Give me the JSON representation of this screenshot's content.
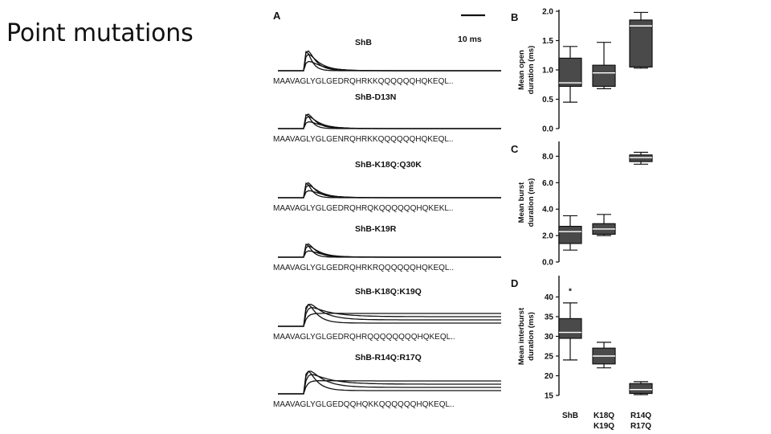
{
  "slide": {
    "title": "Point mutations"
  },
  "panel_a": {
    "label": "A",
    "scale_bar": "10 ms",
    "traces": [
      {
        "construct": "ShB",
        "sequence": "MAAVAGLYGLGEDRQHRKKQQQQQQHQKEQL.."
      },
      {
        "construct": "ShB-D13N",
        "sequence": "MAAVAGLYGLGENRQHRKKQQQQQQHQKEQL.."
      },
      {
        "construct": "ShB-K18Q:Q30K",
        "sequence": "MAAVAGLYGLGEDRQHRQKQQQQQQHQKEKL.."
      },
      {
        "construct": "ShB-K19R",
        "sequence": "MAAVAGLYGLGEDRQHRKRQQQQQQHQKEQL.."
      },
      {
        "construct": "ShB-K18Q:K19Q",
        "sequence": "MAAVAGLYGLGEDRQHRQQQQQQQQHQKEQL.."
      },
      {
        "construct": "ShB-R14Q:R17Q",
        "sequence": "MAAVAGLYGLGEDQQHQKKQQQQQQHQKEQL.."
      }
    ]
  },
  "chart_data": [
    {
      "type": "box",
      "panel": "B",
      "ylabel": "Mean open duration (ms)",
      "ylim": [
        0.0,
        2.0
      ],
      "yticks": [
        "0.0",
        "0.5",
        "1.0",
        "1.5",
        "2.0"
      ],
      "categories": [
        "ShB",
        "K18Q K19Q",
        "R14Q R17Q"
      ],
      "boxes": [
        {
          "whisker_low": 0.45,
          "q1": 0.72,
          "median": 0.78,
          "q3": 1.2,
          "whisker_high": 1.4
        },
        {
          "whisker_low": 0.68,
          "q1": 0.72,
          "median": 0.95,
          "q3": 1.08,
          "whisker_high": 1.47
        },
        {
          "whisker_low": 1.03,
          "q1": 1.05,
          "median": 1.75,
          "q3": 1.85,
          "whisker_high": 1.98
        }
      ]
    },
    {
      "type": "box",
      "panel": "C",
      "ylabel": "Mean burst duration (ms)",
      "ylim": [
        0.0,
        9.0
      ],
      "yticks": [
        "0.0",
        "2.0",
        "4.0",
        "6.0",
        "8.0"
      ],
      "categories": [
        "ShB",
        "K18Q K19Q",
        "R14Q R17Q"
      ],
      "boxes": [
        {
          "whisker_low": 0.9,
          "q1": 1.4,
          "median": 2.3,
          "q3": 2.7,
          "whisker_high": 3.5
        },
        {
          "whisker_low": 2.0,
          "q1": 2.1,
          "median": 2.5,
          "q3": 2.9,
          "whisker_high": 3.6
        },
        {
          "whisker_low": 7.4,
          "q1": 7.6,
          "median": 7.9,
          "q3": 8.1,
          "whisker_high": 8.3
        }
      ]
    },
    {
      "type": "box",
      "panel": "D",
      "ylabel": "Mean interburst duration (ms)",
      "ylim": [
        15,
        45
      ],
      "yticks": [
        "15",
        "20",
        "25",
        "30",
        "35",
        "40"
      ],
      "categories": [
        "ShB",
        "K18Q K19Q",
        "R14Q R17Q"
      ],
      "outlier_marks": [
        "*",
        "",
        ""
      ],
      "outlier_values": [
        42,
        null,
        null
      ],
      "boxes": [
        {
          "whisker_low": 24,
          "q1": 29.5,
          "median": 31,
          "q3": 34.5,
          "whisker_high": 38.5
        },
        {
          "whisker_low": 22,
          "q1": 23,
          "median": 25,
          "q3": 27,
          "whisker_high": 28.5
        },
        {
          "whisker_low": 15.2,
          "q1": 15.5,
          "median": 16.5,
          "q3": 18,
          "whisker_high": 18.5
        }
      ]
    }
  ],
  "x_categories": {
    "shb": "ShB",
    "k18q_k19q": [
      "K18Q",
      "K19Q"
    ],
    "r14q_r17q": [
      "R14Q",
      "R17Q"
    ]
  }
}
